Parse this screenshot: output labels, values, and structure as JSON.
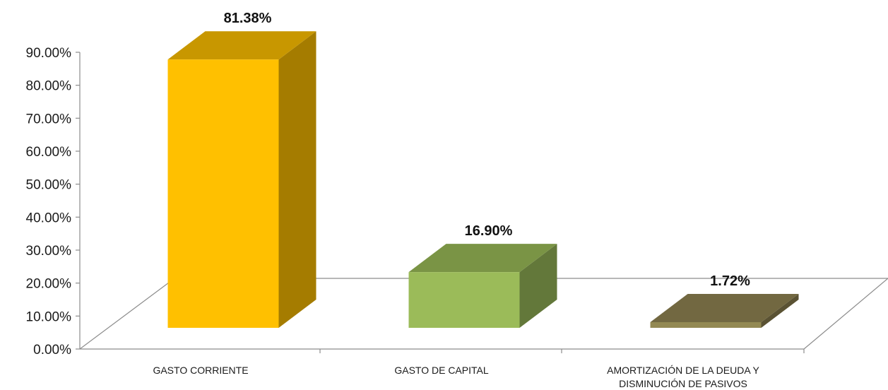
{
  "chart_data": {
    "type": "bar",
    "style": "3d-column",
    "categories": [
      [
        "GASTO CORRIENTE"
      ],
      [
        "GASTO DE CAPITAL"
      ],
      [
        "AMORTIZACIÓN DE LA DEUDA Y",
        "DISMINUCIÓN DE PASIVOS"
      ]
    ],
    "values": [
      81.38,
      16.9,
      1.72
    ],
    "data_labels": [
      "81.38%",
      "16.90%",
      "1.72%"
    ],
    "y_ticks": [
      "0.00%",
      "10.00%",
      "20.00%",
      "30.00%",
      "40.00%",
      "50.00%",
      "60.00%",
      "70.00%",
      "80.00%",
      "90.00%"
    ],
    "ylim": [
      0,
      90
    ],
    "title": "",
    "xlabel": "",
    "ylabel": "",
    "grid": false,
    "legend": "none",
    "colors": [
      {
        "front": "#ffc000",
        "top": "#c89700",
        "side": "#a57c00"
      },
      {
        "front": "#9bbb59",
        "top": "#7a9445",
        "side": "#63783a"
      },
      {
        "front": "#938953",
        "top": "#726841",
        "side": "#5a5233"
      }
    ]
  }
}
